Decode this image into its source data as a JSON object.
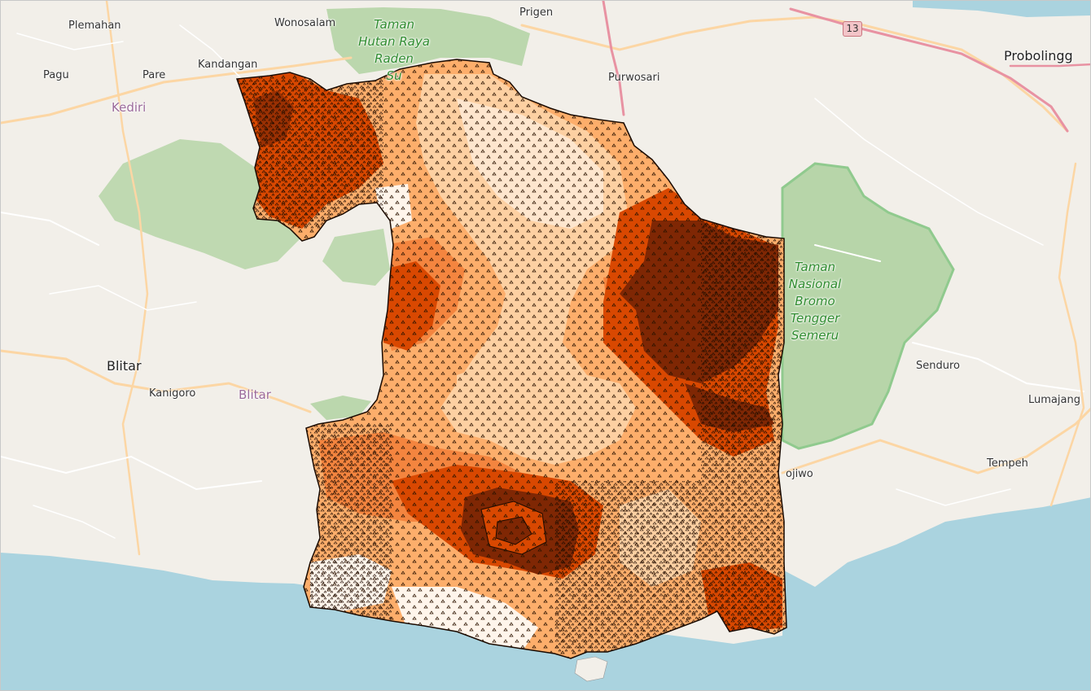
{
  "basemap": {
    "colors": {
      "land": "#f2efe9",
      "sea": "#aad3df",
      "forest": "#add19e",
      "park_outline": "#7fc47f",
      "primary_road": "#e892a2",
      "secondary_road": "#fcd6a4",
      "minor_road": "#ffffff"
    },
    "labels": {
      "plemahan": "Plemahan",
      "wonosalam": "Wonosalam",
      "prigen": "Prigen",
      "pagu": "Pagu",
      "pare": "Pare",
      "kandangan": "Kandangan",
      "purwosari": "Purwosari",
      "probolinggo": "Probolingg",
      "kediri": "Kediri",
      "blitar_city": "Blitar",
      "kanigoro": "Kanigoro",
      "blitar_admin": "Blitar",
      "senduro": "Senduro",
      "lumajang": "Lumajang",
      "tempeh": "Tempeh",
      "pojiwo": "ojiwo",
      "park_taman_hutan": [
        "Taman",
        "Hutan Raya",
        "Raden",
        "Su"
      ],
      "park_bromo": [
        "Taman",
        "Nasional",
        "Bromo",
        "Tengger",
        "Semeru"
      ]
    },
    "road_shield": "13"
  },
  "choropleth": {
    "classes": [
      "#fff5eb",
      "#fdd0a2",
      "#fdae6b",
      "#f4853f",
      "#d94801",
      "#7f2704"
    ],
    "outline": "#1a0a00"
  }
}
